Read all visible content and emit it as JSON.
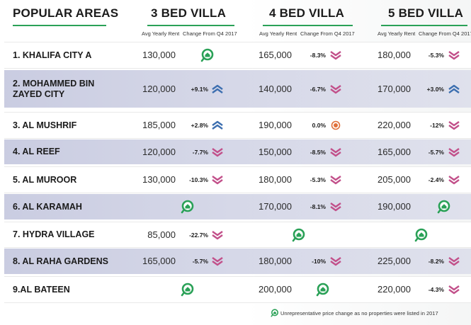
{
  "headers": {
    "areas": "POPULAR AREAS",
    "bed3": "3 BED VILLA",
    "bed4": "4 BED VILLA",
    "bed5": "5 BED VILLA"
  },
  "subheaders": {
    "rent": "Avg Yearly Rent",
    "change": "Change From Q4 2017"
  },
  "rows": [
    {
      "label": "1. KHALIFA CITY A",
      "b3": {
        "rent": "130,000",
        "change": "",
        "trend": "na"
      },
      "b4": {
        "rent": "165,000",
        "change": "-8.3%",
        "trend": "down"
      },
      "b5": {
        "rent": "180,000",
        "change": "-5.3%",
        "trend": "down"
      }
    },
    {
      "label": "2. MOHAMMED BIN\nZAYED CITY",
      "b3": {
        "rent": "120,000",
        "change": "+9.1%",
        "trend": "up"
      },
      "b4": {
        "rent": "140,000",
        "change": "-6.7%",
        "trend": "down"
      },
      "b5": {
        "rent": "170,000",
        "change": "+3.0%",
        "trend": "up"
      }
    },
    {
      "label": "3. AL MUSHRIF",
      "b3": {
        "rent": "185,000",
        "change": "+2.8%",
        "trend": "up"
      },
      "b4": {
        "rent": "190,000",
        "change": "0.0%",
        "trend": "flat"
      },
      "b5": {
        "rent": "220,000",
        "change": "-12%",
        "trend": "down"
      }
    },
    {
      "label": "4. AL REEF",
      "b3": {
        "rent": "120,000",
        "change": "-7.7%",
        "trend": "down"
      },
      "b4": {
        "rent": "150,000",
        "change": "-8.5%",
        "trend": "down"
      },
      "b5": {
        "rent": "165,000",
        "change": "-5.7%",
        "trend": "down"
      }
    },
    {
      "label": "5. AL MUROOR",
      "b3": {
        "rent": "130,000",
        "change": "-10.3%",
        "trend": "down"
      },
      "b4": {
        "rent": "180,000",
        "change": "-5.3%",
        "trend": "down"
      },
      "b5": {
        "rent": "205,000",
        "change": "-2.4%",
        "trend": "down"
      }
    },
    {
      "label": "6. AL KARAMAH",
      "b3": {
        "rent": "",
        "change": "",
        "trend": "na"
      },
      "b4": {
        "rent": "170,000",
        "change": "-8.1%",
        "trend": "down"
      },
      "b5": {
        "rent": "190,000",
        "change": "",
        "trend": "na"
      }
    },
    {
      "label": "7. HYDRA VILLAGE",
      "b3": {
        "rent": "85,000",
        "change": "-22.7%",
        "trend": "down"
      },
      "b4": {
        "rent": "",
        "change": "",
        "trend": "na"
      },
      "b5": {
        "rent": "",
        "change": "",
        "trend": "na"
      }
    },
    {
      "label": "8. AL RAHA GARDENS",
      "b3": {
        "rent": "165,000",
        "change": "-5.7%",
        "trend": "down"
      },
      "b4": {
        "rent": "180,000",
        "change": "-10%",
        "trend": "down"
      },
      "b5": {
        "rent": "225,000",
        "change": "-8.2%",
        "trend": "down"
      }
    },
    {
      "label": "9.AL BATEEN",
      "b3": {
        "rent": "",
        "change": "",
        "trend": "na"
      },
      "b4": {
        "rent": "200,000",
        "change": "",
        "trend": "na"
      },
      "b5": {
        "rent": "220,000",
        "change": "-4.3%",
        "trend": "down"
      }
    }
  ],
  "footnote": "Unrepresentative price change as no properties were listed in 2017",
  "colors": {
    "accent_green": "#2aa157",
    "down_arrow": "#c2508a",
    "up_arrow": "#3d6fb0",
    "flat_dot": "#e0703a",
    "alt_row": "#c4c7de"
  },
  "icons": {
    "down": "chevron-down-icon",
    "up": "chevron-up-icon",
    "flat": "target-dot-icon",
    "na": "home-pin-icon"
  }
}
